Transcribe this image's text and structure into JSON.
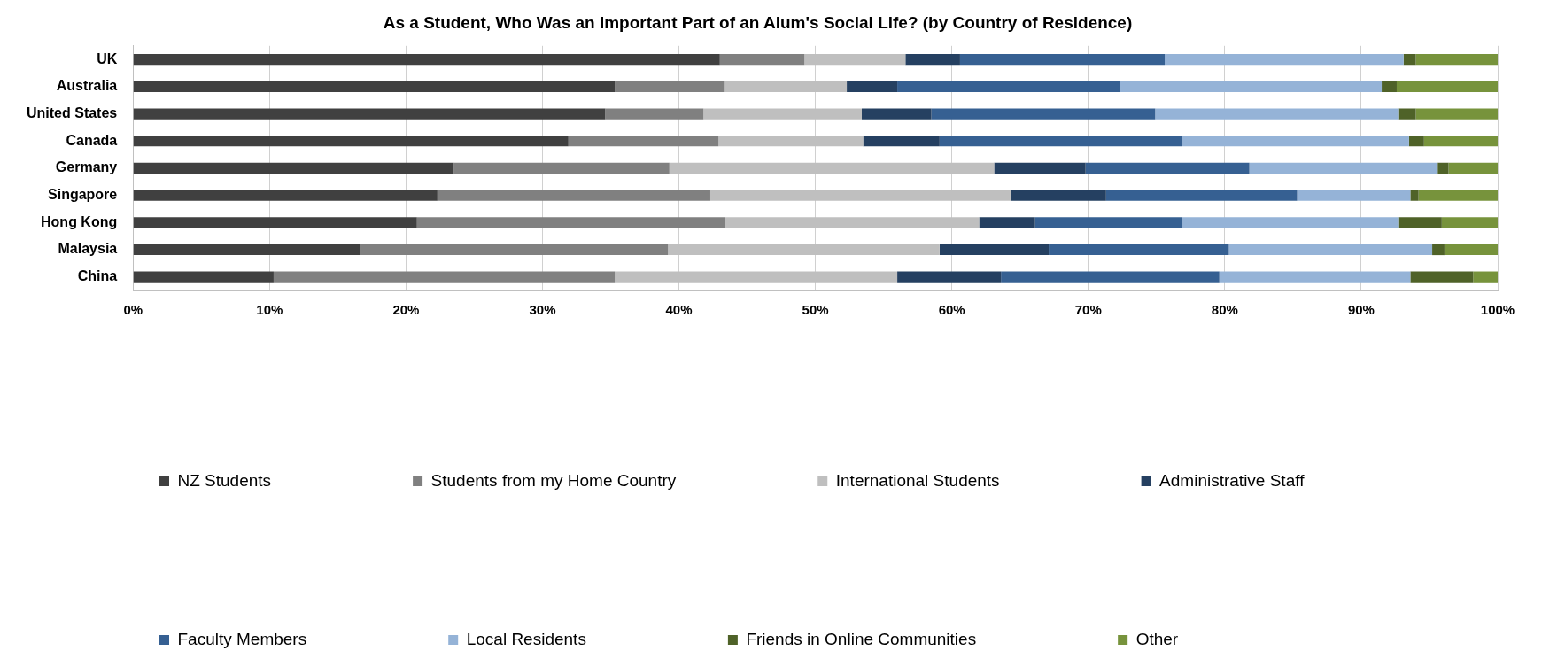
{
  "chart_data": {
    "type": "bar",
    "orientation": "horizontal",
    "stacked": true,
    "title": "As a Student, Who Was an Important Part of an Alum's Social Life? (by Country of Residence)",
    "categories": [
      "UK",
      "Australia",
      "United States",
      "Canada",
      "Germany",
      "Singapore",
      "Hong Kong",
      "Malaysia",
      "China"
    ],
    "series": [
      {
        "name": "NZ Students",
        "color": "#404040",
        "values": [
          43,
          35.3,
          34.6,
          31.9,
          23.5,
          22.3,
          20.8,
          16.6,
          10.3
        ]
      },
      {
        "name": "Students from my Home Country",
        "color": "#808080",
        "values": [
          6.2,
          8,
          7.2,
          11,
          15.8,
          20,
          22.6,
          22.6,
          25
        ]
      },
      {
        "name": "International Students",
        "color": "#bfbfbf",
        "values": [
          7.4,
          9,
          11.6,
          10.6,
          23.8,
          22,
          18.6,
          19.9,
          20.7
        ]
      },
      {
        "name": "Administrative Staff",
        "color": "#254061",
        "values": [
          4,
          3.7,
          5.1,
          5.6,
          6.7,
          7,
          4.1,
          8,
          7.6
        ]
      },
      {
        "name": "Faculty Members",
        "color": "#366092",
        "values": [
          15,
          16.3,
          16.4,
          17.8,
          12,
          14,
          10.8,
          13.2,
          16
        ]
      },
      {
        "name": "Local Residents",
        "color": "#95b3d7",
        "values": [
          17.5,
          19.2,
          17.8,
          16.6,
          13.8,
          8.3,
          15.8,
          14.9,
          14
        ]
      },
      {
        "name": "Friends in Online Communities",
        "color": "#4f6228",
        "values": [
          0.9,
          1.1,
          1.3,
          1.1,
          0.8,
          0.6,
          3.2,
          0.9,
          4.6
        ]
      },
      {
        "name": "Other",
        "color": "#77933c",
        "values": [
          6,
          7.4,
          6,
          5.4,
          3.6,
          5.8,
          4.1,
          3.9,
          1.8
        ]
      }
    ],
    "xlim": [
      0,
      100
    ],
    "xticks": [
      {
        "value": 0,
        "label": "0%"
      },
      {
        "value": 10,
        "label": "10%"
      },
      {
        "value": 20,
        "label": "20%"
      },
      {
        "value": 30,
        "label": "30%"
      },
      {
        "value": 40,
        "label": "40%"
      },
      {
        "value": 50,
        "label": "50%"
      },
      {
        "value": 60,
        "label": "60%"
      },
      {
        "value": 70,
        "label": "70%"
      },
      {
        "value": 80,
        "label": "80%"
      },
      {
        "value": 90,
        "label": "90%"
      },
      {
        "value": 100,
        "label": "100%"
      }
    ],
    "grid": "x",
    "legend": "bottom"
  }
}
